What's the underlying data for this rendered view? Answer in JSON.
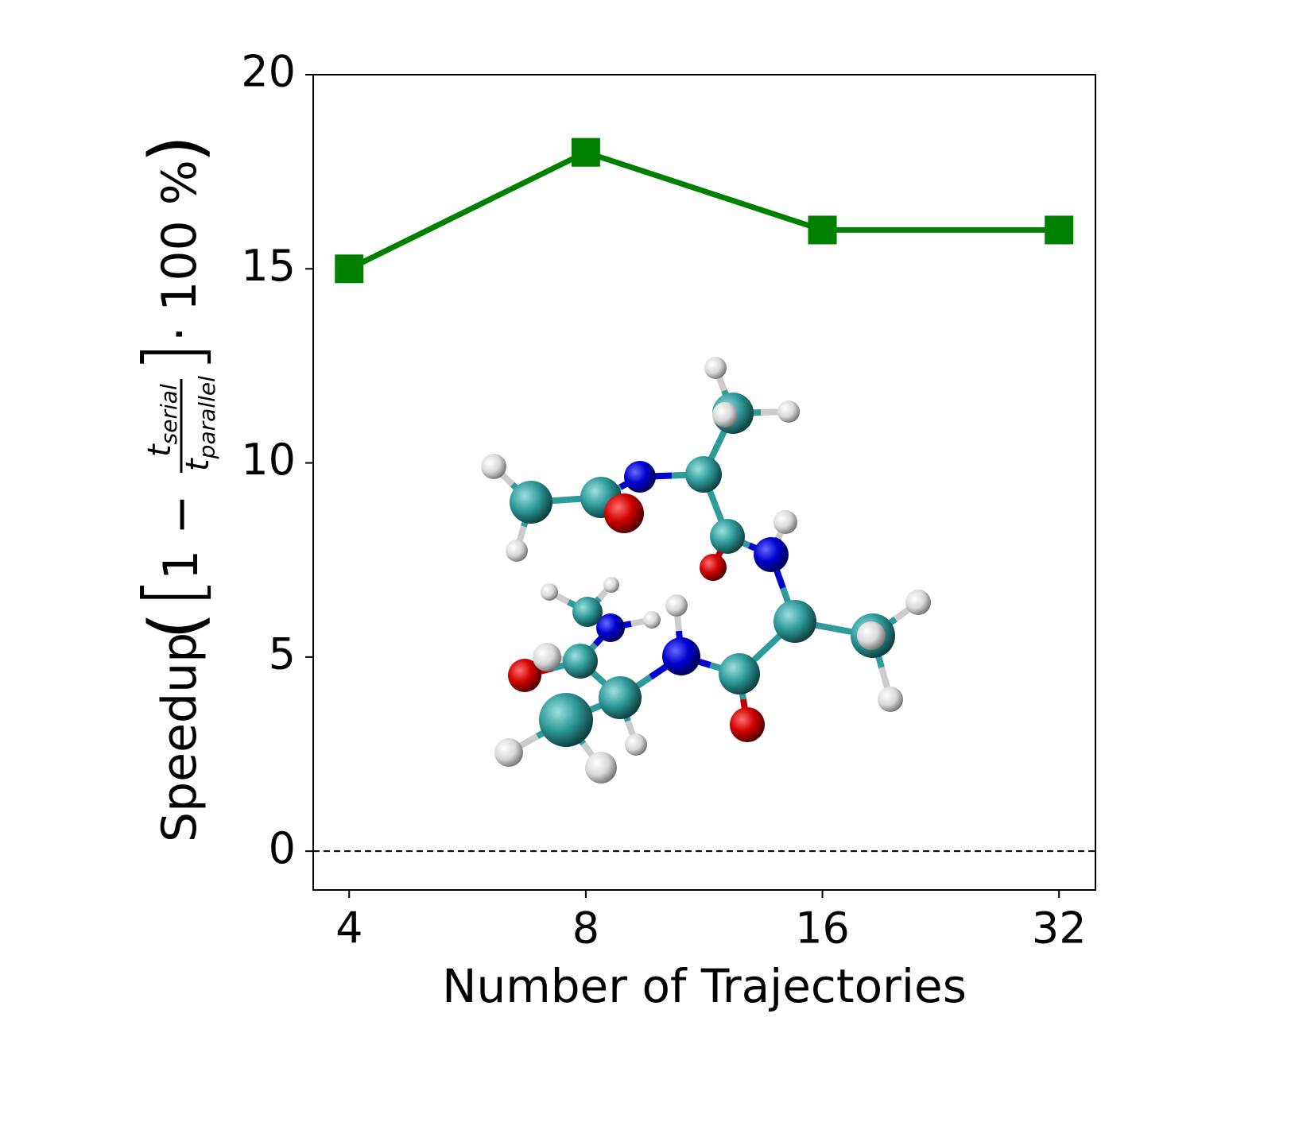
{
  "chart_data": {
    "type": "line",
    "ylabel": {
      "prefix": "Speedup",
      "open": "(",
      "bracket_open": "[",
      "one_minus": "1 −",
      "numerator": "t",
      "numerator_sub": "serial",
      "denominator": "t",
      "denominator_sub": "parallel",
      "bracket_close": "]",
      "suffix": "· 100 %",
      "close": ")"
    },
    "xlabel": "Number of Trajectories",
    "x": [
      4,
      8,
      16,
      32
    ],
    "values": [
      15,
      18,
      16,
      16
    ],
    "color": "#008000",
    "marker": "square",
    "xscale": "log2",
    "xlim": [
      3.6,
      35.6
    ],
    "xticks": [
      4,
      8,
      16,
      32
    ],
    "ylim": [
      -1,
      20
    ],
    "yticks": [
      0,
      5,
      10,
      15,
      20
    ],
    "reference_line": {
      "y": 0,
      "style": "dashed"
    }
  }
}
